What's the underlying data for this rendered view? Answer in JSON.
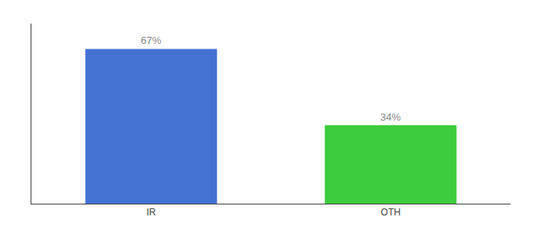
{
  "chart_data": {
    "type": "bar",
    "categories": [
      "IR",
      "OTH"
    ],
    "values": [
      67,
      34
    ],
    "value_labels": [
      "67%",
      "34%"
    ],
    "colors": [
      "#4472d4",
      "#3dcc3d"
    ],
    "ylim": [
      0,
      78
    ],
    "grid": false,
    "data_labels": true,
    "tick_labels": "x"
  }
}
